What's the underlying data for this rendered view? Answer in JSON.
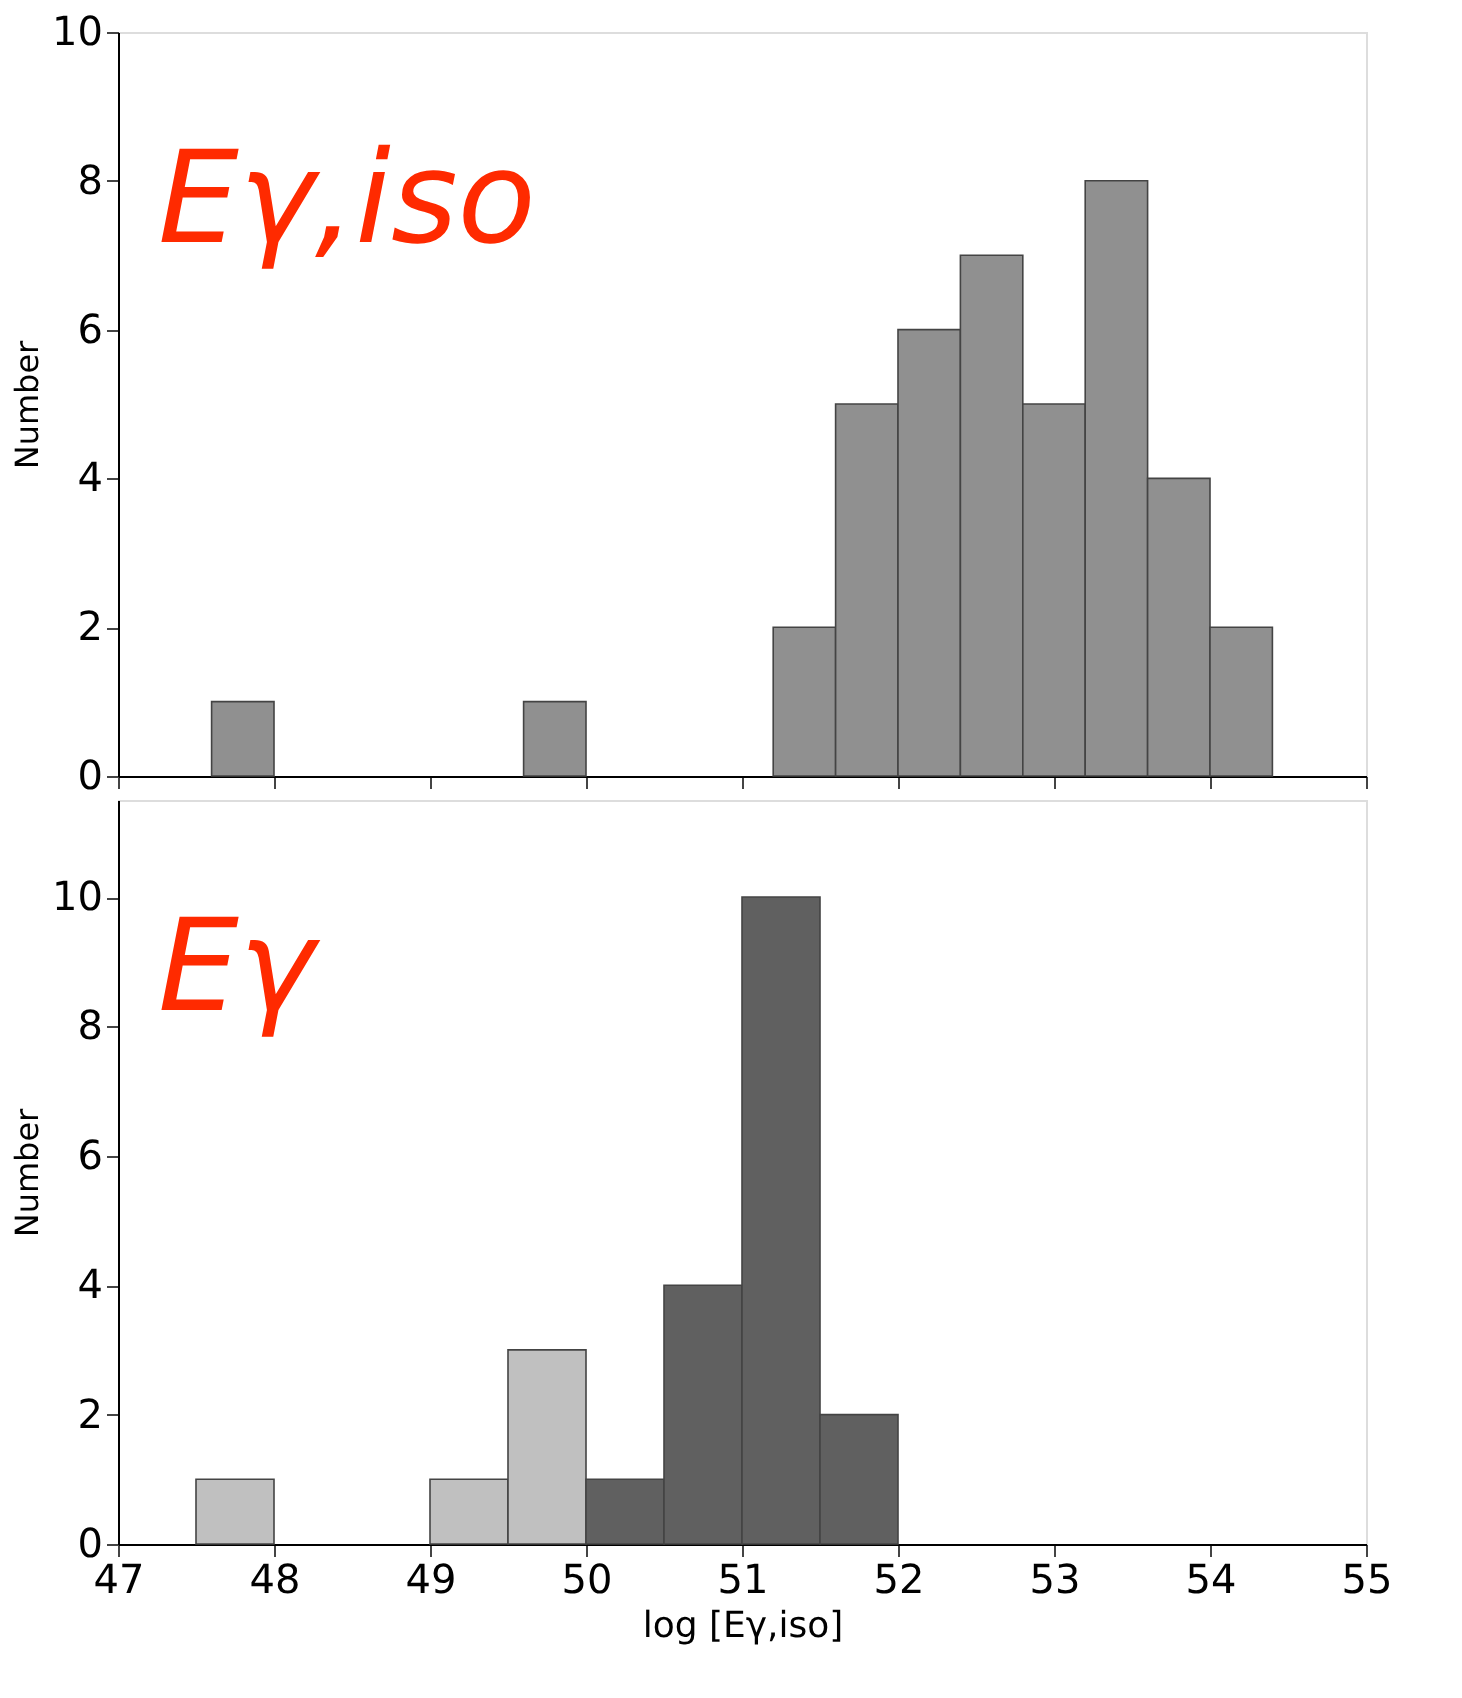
{
  "chart_data": [
    {
      "type": "histogram",
      "ylabel": "Number",
      "annotations": [
        "Eγ,iso"
      ],
      "bins": [
        47.6,
        48.0,
        48.4,
        48.8,
        49.2,
        49.6,
        50.0,
        50.4,
        50.8,
        51.2,
        51.6,
        52.0,
        52.4,
        52.8,
        53.2,
        53.6,
        54.0,
        54.4
      ],
      "series": [
        {
          "color": "#909090",
          "values": [
            1,
            null,
            null,
            null,
            null,
            1,
            null,
            null,
            null,
            2,
            5,
            6,
            7,
            5,
            8,
            4,
            2
          ]
        }
      ],
      "xlim": [
        47,
        55
      ],
      "xticks": [
        47,
        48,
        49,
        50,
        51,
        52,
        53,
        54,
        55
      ],
      "ylim": [
        0,
        10
      ],
      "yticks": [
        0,
        2,
        4,
        6,
        8,
        10
      ],
      "tick_labels": "y",
      "grid": false
    },
    {
      "type": "histogram",
      "xlabel": "log [Eγ,iso]",
      "ylabel": "Number",
      "annotations": [
        "Eγ"
      ],
      "bins": [
        47.5,
        48.0,
        48.5,
        49.0,
        49.5,
        50.0,
        50.5,
        51.0,
        51.5,
        52.0
      ],
      "series": [
        {
          "color": "#c0c0c0",
          "values": [
            1,
            null,
            null,
            1,
            3,
            null,
            null,
            null,
            null
          ]
        },
        {
          "color": "#606060",
          "values": [
            null,
            null,
            null,
            null,
            null,
            1,
            4,
            10,
            2
          ]
        }
      ],
      "xlim": [
        47,
        55
      ],
      "xticks": [
        47,
        48,
        49,
        50,
        51,
        52,
        53,
        54,
        55
      ],
      "ylim": [
        0,
        11.5
      ],
      "yticks": [
        0,
        2,
        4,
        6,
        8,
        10
      ],
      "grid": false
    }
  ]
}
